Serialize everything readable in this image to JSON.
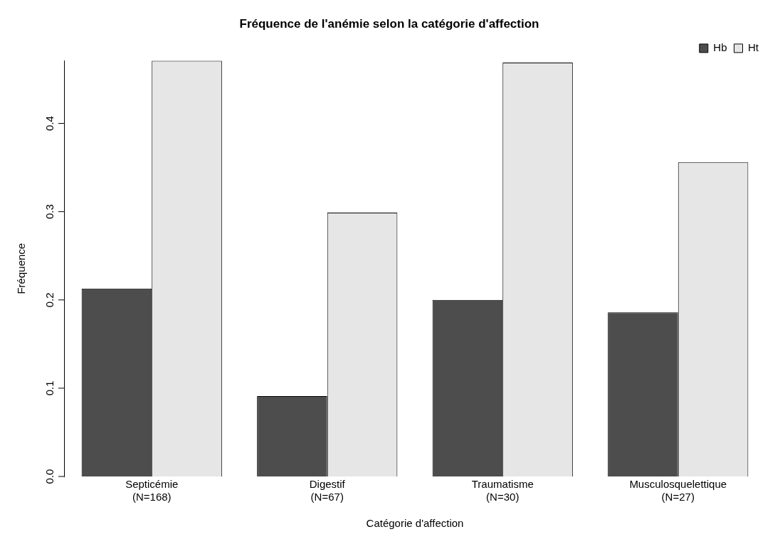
{
  "chart_data": {
    "type": "bar",
    "title": "Fréquence de l'anémie selon la catégorie d'affection",
    "xlabel": "Catégorie d'affection",
    "ylabel": "Fréquence",
    "categories": [
      "Septicémie\n(N=168)",
      "Digestif\n(N=67)",
      "Traumatisme\n(N=30)",
      "Musculosquelettique\n(N=27)"
    ],
    "series": [
      {
        "name": "Hb",
        "color": "#4d4d4d",
        "values": [
          0.213,
          0.091,
          0.2,
          0.186
        ]
      },
      {
        "name": "Ht",
        "color": "#e6e6e6",
        "values": [
          0.471,
          0.299,
          0.469,
          0.356
        ]
      }
    ],
    "ylim": [
      0,
      0.471
    ],
    "yticks": [
      {
        "value": 0,
        "label": "0.0"
      },
      {
        "value": 0.1,
        "label": "0.1"
      },
      {
        "value": 0.2,
        "label": "0.2"
      },
      {
        "value": 0.3,
        "label": "0.3"
      },
      {
        "value": 0.4,
        "label": "0.4"
      }
    ],
    "grid": false,
    "legend": "top right"
  }
}
